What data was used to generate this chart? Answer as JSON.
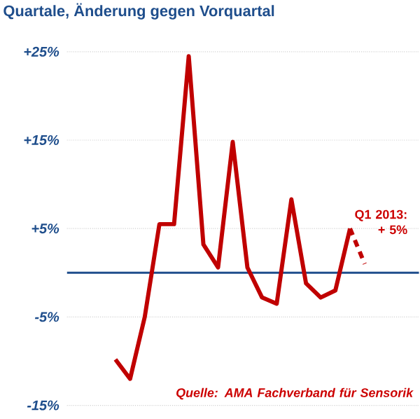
{
  "chart_data": {
    "type": "line",
    "title": "Quartale, Änderung gegen Vorquartal",
    "categories": [
      null,
      null,
      null,
      null,
      null,
      null,
      null,
      null,
      null,
      null,
      null,
      null,
      null,
      null,
      null,
      null,
      null,
      null,
      null
    ],
    "series": [
      {
        "color": "#c00000",
        "line_style": "solid",
        "values": [
          -9.8,
          -12,
          -5,
          5.5,
          5.5,
          24.5,
          3.2,
          0.6,
          14.8,
          0.6,
          -2.8,
          -3.5,
          8.3,
          -1.2,
          -2.8,
          -2,
          5,
          null,
          null
        ]
      },
      {
        "color": "#c00000",
        "line_style": "dashed",
        "values": [
          null,
          null,
          null,
          null,
          null,
          null,
          null,
          null,
          null,
          null,
          null,
          null,
          null,
          null,
          null,
          null,
          5,
          1,
          null
        ]
      }
    ],
    "ylim": [
      -15,
      25
    ],
    "yticks": [
      {
        "value": -15,
        "label": "-15%"
      },
      {
        "value": -5,
        "label": "-5%"
      },
      {
        "value": 5,
        "label": "+5%"
      },
      {
        "value": 15,
        "label": "+15%"
      },
      {
        "value": 25,
        "label": "+25%"
      }
    ],
    "grid": "y",
    "ref_lines": [
      {
        "axis": "y",
        "value": 0,
        "color": "#1f4e8c"
      }
    ],
    "annotations": [
      "Q1 2013:\n+ 5%",
      "Quelle: AMA Fachverband für Sensorik"
    ]
  }
}
